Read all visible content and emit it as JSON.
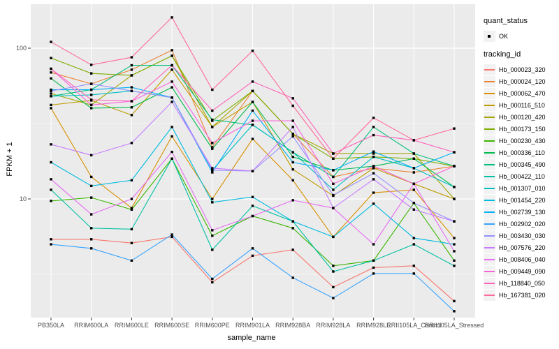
{
  "legend": {
    "quant_title": "quant_status",
    "quant_items": [
      {
        "label": "OK",
        "marker": "black-point"
      }
    ],
    "tracking_title": "tracking_id"
  },
  "chart_data": {
    "type": "line",
    "title": "",
    "xlabel": "sample_name",
    "ylabel": "FPKM + 1",
    "y_scale": "log10",
    "ylim": [
      1.6,
      190
    ],
    "y_major_ticks": [
      {
        "value": 10,
        "label": "10"
      },
      {
        "value": 100,
        "label": "100"
      }
    ],
    "y_minor_ticks": [
      3.162,
      31.62
    ],
    "grid": "on",
    "legend_position": "right",
    "panel_bg": "#EBEBEB",
    "grid_color": "#FFFFFF",
    "tick_text_color": "#4D4D4D",
    "point_marker": "small-black-square",
    "categories": [
      "PB350LA",
      "RRIM600LA",
      "RRIM600LE",
      "RRIM600SE",
      "RRIM600PE",
      "RRIM901LA",
      "RRIM928BA",
      "RRIM928LA",
      "RRIM928LE",
      "RRII105LA_Control",
      "RRII105LA_Stressed"
    ],
    "series": [
      {
        "name": "Hb_000023_320",
        "color": "#F8766D",
        "values": [
          5.4,
          5.4,
          5.1,
          5.6,
          2.8,
          4.2,
          4.6,
          2.6,
          3.5,
          3.6,
          2.1
        ]
      },
      {
        "name": "Hb_000024_120",
        "color": "#EA8331",
        "values": [
          69,
          58,
          72,
          97,
          22,
          52,
          27,
          14,
          16,
          15,
          16.5
        ]
      },
      {
        "name": "Hb_000062_470",
        "color": "#D89000",
        "values": [
          40,
          14,
          8.7,
          26,
          10,
          25,
          13.3,
          5.6,
          11,
          11.5,
          5.5
        ]
      },
      {
        "name": "Hb_000116_510",
        "color": "#C09B00",
        "values": [
          42,
          45,
          36,
          72,
          30,
          44,
          15.7,
          10.5,
          16,
          12.6,
          10
        ]
      },
      {
        "name": "Hb_000120_420",
        "color": "#A3A500",
        "values": [
          50,
          42,
          66,
          89,
          30,
          52,
          27,
          20,
          20,
          20,
          10
        ]
      },
      {
        "name": "Hb_000173_150",
        "color": "#7CAE00",
        "values": [
          86,
          68,
          66,
          89,
          33,
          52,
          27,
          18.5,
          19,
          18.5,
          16.5
        ]
      },
      {
        "name": "Hb_000230_430",
        "color": "#39B600",
        "values": [
          9.7,
          10.2,
          8.5,
          18.5,
          5.7,
          7.7,
          6.4,
          3.6,
          3.9,
          9.4,
          3.9
        ]
      },
      {
        "name": "Hb_000336_110",
        "color": "#00BB4E",
        "values": [
          63,
          40,
          40.5,
          55,
          21.5,
          44,
          19,
          15.5,
          16.5,
          18.5,
          12
        ]
      },
      {
        "name": "Hb_000345_490",
        "color": "#00BF7D",
        "values": [
          48,
          53,
          77,
          77,
          33.5,
          31,
          20.4,
          14,
          30,
          20,
          16.5
        ]
      },
      {
        "name": "Hb_000422_110",
        "color": "#00C1A3",
        "values": [
          11.5,
          6.4,
          6.3,
          18.5,
          4.6,
          9,
          7.1,
          3.3,
          3.9,
          5,
          3.6
        ]
      },
      {
        "name": "Hb_001307_010",
        "color": "#00BFC4",
        "values": [
          48,
          49,
          52,
          47,
          15.5,
          31,
          20.4,
          11.5,
          19,
          16,
          12
        ]
      },
      {
        "name": "Hb_001454_220",
        "color": "#00BAE0",
        "values": [
          17.5,
          12.2,
          13.3,
          30,
          9.5,
          10.3,
          7.1,
          5.6,
          9.3,
          5.5,
          5
        ]
      },
      {
        "name": "Hb_002739_130",
        "color": "#00B0F6",
        "values": [
          53,
          53,
          55,
          47,
          15,
          38.5,
          17.5,
          15.5,
          20.6,
          16,
          20.4
        ]
      },
      {
        "name": "Hb_002902_020",
        "color": "#35A2FF",
        "values": [
          5.0,
          4.7,
          3.9,
          5.8,
          2.95,
          4.7,
          3.0,
          2.2,
          3.2,
          3.2,
          1.8
        ]
      },
      {
        "name": "Hb_003430_030",
        "color": "#9590FF",
        "values": [
          52,
          58,
          52,
          47,
          15.5,
          15.3,
          26,
          10.6,
          14.8,
          9.4,
          7.1
        ]
      },
      {
        "name": "Hb_007576_220",
        "color": "#C77CFF",
        "values": [
          23,
          19.5,
          23.5,
          44,
          16,
          15.3,
          30,
          8.7,
          13.5,
          8.5,
          7.1
        ]
      },
      {
        "name": "Hb_008406_040",
        "color": "#E76BF3",
        "values": [
          13.5,
          7.9,
          10,
          20.5,
          6.2,
          7.7,
          9.8,
          8.7,
          5.0,
          12.6,
          4.5
        ]
      },
      {
        "name": "Hb_009449_090",
        "color": "#FA62DB",
        "values": [
          73,
          42,
          44.5,
          60,
          23.5,
          33,
          33,
          12.6,
          16.5,
          12.6,
          16.5
        ]
      },
      {
        "name": "Hb_118840_050",
        "color": "#FF62BC",
        "values": [
          73,
          45.5,
          44.5,
          77,
          38.5,
          60,
          46.5,
          20,
          26.5,
          24.5,
          20.4
        ]
      },
      {
        "name": "Hb_167381_020",
        "color": "#FF6A98",
        "values": [
          110,
          77.5,
          87,
          160,
          53,
          96,
          41.5,
          18.5,
          34.5,
          24.5,
          29.3
        ]
      }
    ]
  }
}
